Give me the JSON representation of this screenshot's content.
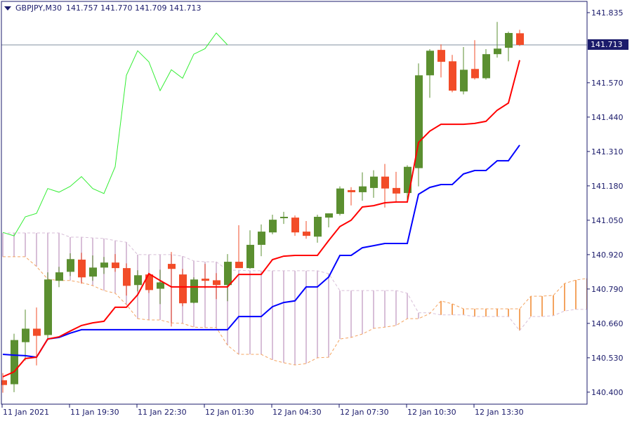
{
  "header": {
    "symbol": "GBPJPY,M30",
    "ohlc": "141.757 141.770 141.709 141.713",
    "menu_icon": "triangle-down-icon"
  },
  "current_price_label": "141.713",
  "chart_data": {
    "type": "candlestick",
    "symbol": "GBPJPY",
    "timeframe": "M30",
    "ylim": [
      140.35,
      141.885
    ],
    "y_ticks": [
      "141.835",
      "141.570",
      "141.440",
      "141.310",
      "141.180",
      "141.050",
      "140.920",
      "140.790",
      "140.660",
      "140.530",
      "140.400"
    ],
    "x_ticks": [
      {
        "bar": 0,
        "label": "11 Jan 2021"
      },
      {
        "bar": 6,
        "label": "11 Jan 19:30"
      },
      {
        "bar": 12,
        "label": "11 Jan 22:30"
      },
      {
        "bar": 18,
        "label": "12 Jan 01:30"
      },
      {
        "bar": 24,
        "label": "12 Jan 04:30"
      },
      {
        "bar": 30,
        "label": "12 Jan 07:30"
      },
      {
        "bar": 36,
        "label": "12 Jan 10:30"
      },
      {
        "bar": 42,
        "label": "12 Jan 13:30"
      }
    ],
    "current_price": 141.713,
    "candles_ohlc": [
      [
        140.445,
        140.472,
        140.398,
        140.427
      ],
      [
        140.43,
        140.621,
        140.4,
        140.597
      ],
      [
        140.589,
        140.712,
        140.52,
        140.64
      ],
      [
        140.64,
        140.72,
        140.501,
        140.613
      ],
      [
        140.616,
        140.853,
        140.595,
        140.826
      ],
      [
        140.821,
        140.874,
        140.797,
        140.853
      ],
      [
        140.855,
        140.925,
        140.839,
        140.903
      ],
      [
        140.901,
        140.927,
        140.81,
        140.834
      ],
      [
        140.837,
        140.917,
        140.821,
        140.871
      ],
      [
        140.871,
        140.911,
        140.847,
        140.89
      ],
      [
        140.89,
        140.922,
        140.855,
        140.869
      ],
      [
        140.869,
        140.887,
        140.765,
        140.802
      ],
      [
        140.805,
        140.861,
        140.781,
        140.842
      ],
      [
        140.845,
        140.85,
        140.775,
        140.786
      ],
      [
        140.791,
        140.863,
        140.733,
        140.815
      ],
      [
        140.885,
        140.93,
        140.648,
        140.866
      ],
      [
        140.845,
        140.866,
        140.725,
        140.736
      ],
      [
        140.738,
        140.834,
        140.736,
        140.826
      ],
      [
        140.829,
        140.885,
        140.792,
        140.821
      ],
      [
        140.823,
        140.85,
        140.752,
        140.805
      ],
      [
        140.805,
        140.922,
        140.744,
        140.893
      ],
      [
        140.893,
        141.031,
        140.869,
        140.869
      ],
      [
        140.869,
        141.012,
        140.866,
        140.957
      ],
      [
        140.957,
        141.034,
        140.914,
        141.007
      ],
      [
        141.004,
        141.071,
        140.997,
        141.052
      ],
      [
        141.06,
        141.082,
        141.036,
        141.063
      ],
      [
        141.06,
        141.068,
        140.991,
        141.004
      ],
      [
        141.007,
        141.047,
        140.98,
        140.991
      ],
      [
        140.988,
        141.071,
        140.965,
        141.063
      ],
      [
        141.06,
        141.076,
        141.023,
        141.076
      ],
      [
        141.074,
        141.178,
        141.068,
        141.17
      ],
      [
        141.164,
        141.175,
        141.106,
        141.156
      ],
      [
        141.156,
        141.231,
        141.124,
        141.178
      ],
      [
        141.172,
        141.239,
        141.135,
        141.215
      ],
      [
        141.215,
        141.263,
        141.098,
        141.17
      ],
      [
        141.172,
        141.233,
        141.116,
        141.151
      ],
      [
        141.153,
        141.258,
        141.124,
        141.252
      ],
      [
        141.247,
        141.643,
        141.178,
        141.598
      ],
      [
        141.598,
        141.697,
        141.513,
        141.691
      ],
      [
        141.694,
        141.715,
        141.59,
        141.649
      ],
      [
        141.651,
        141.675,
        141.534,
        141.54
      ],
      [
        141.537,
        141.705,
        141.526,
        141.619
      ],
      [
        141.622,
        141.731,
        141.582,
        141.587
      ],
      [
        141.587,
        141.697,
        141.582,
        141.678
      ],
      [
        141.678,
        141.8,
        141.665,
        141.699
      ],
      [
        141.702,
        141.763,
        141.651,
        141.758
      ],
      [
        141.757,
        141.77,
        141.709,
        141.713
      ]
    ],
    "ichimoku": {
      "tenkan": [
        140.458,
        140.477,
        140.527,
        140.532,
        140.601,
        140.609,
        140.631,
        140.652,
        140.662,
        140.668,
        140.721,
        140.721,
        140.768,
        140.848,
        140.822,
        140.798,
        140.798,
        140.798,
        140.798,
        140.798,
        140.798,
        140.845,
        140.845,
        140.845,
        140.901,
        140.914,
        140.917,
        140.917,
        140.917,
        140.973,
        141.026,
        141.05,
        141.1,
        141.105,
        141.116,
        141.119,
        141.119,
        141.344,
        141.387,
        141.413,
        141.413,
        141.413,
        141.416,
        141.424,
        141.466,
        141.493,
        141.655
      ],
      "kijun": [
        140.543,
        140.54,
        140.538,
        140.532,
        140.601,
        140.607,
        140.623,
        140.636,
        140.636,
        140.636,
        140.636,
        140.636,
        140.636,
        140.636,
        140.636,
        140.636,
        140.636,
        140.636,
        140.636,
        140.636,
        140.636,
        140.686,
        140.686,
        140.686,
        140.723,
        140.739,
        140.745,
        140.798,
        140.798,
        140.835,
        140.917,
        140.917,
        140.946,
        140.954,
        140.962,
        140.962,
        140.962,
        141.148,
        141.174,
        141.185,
        141.185,
        141.225,
        141.238,
        141.238,
        141.275,
        141.275,
        141.334
      ],
      "senkou_a": [
        140.912,
        140.912,
        140.912,
        140.875,
        140.827,
        140.822,
        140.822,
        140.814,
        140.803,
        140.784,
        140.774,
        140.731,
        140.678,
        140.673,
        140.673,
        140.662,
        140.66,
        140.646,
        140.644,
        140.644,
        140.577,
        140.543,
        140.543,
        140.543,
        140.522,
        140.511,
        140.503,
        140.508,
        140.53,
        140.532,
        140.601,
        140.607,
        140.62,
        140.641,
        140.646,
        140.652,
        140.678,
        140.678,
        140.697,
        140.745,
        140.734,
        140.715,
        140.715,
        140.715,
        140.715,
        140.715,
        140.715,
        140.763,
        140.763,
        140.766,
        140.811,
        140.824,
        140.83
      ],
      "senkou_b": [
        141.002,
        141.002,
        141.002,
        141.002,
        141.002,
        141.002,
        140.986,
        140.986,
        140.983,
        140.981,
        140.973,
        140.967,
        140.92,
        140.92,
        140.92,
        140.92,
        140.914,
        140.896,
        140.893,
        140.893,
        140.861,
        140.861,
        140.859,
        140.859,
        140.859,
        140.859,
        140.859,
        140.859,
        140.859,
        140.848,
        140.784,
        140.784,
        140.784,
        140.784,
        140.784,
        140.784,
        140.774,
        140.7,
        140.7,
        140.692,
        140.692,
        140.692,
        140.686,
        140.686,
        140.686,
        140.686,
        140.633,
        140.686,
        140.686,
        140.689,
        140.707,
        140.713,
        140.713
      ],
      "chikou_shift": 26
    },
    "colors": {
      "bull": "#5b8f30",
      "bear": "#f24c28",
      "tenkan": "#ff0000",
      "kijun": "#0000ff",
      "chikou": "#33ee33",
      "senkou_a": "#f4a460",
      "senkou_b": "#d8bfd8",
      "axis": "#1b1b6b",
      "price_line": "#8090a0"
    }
  }
}
